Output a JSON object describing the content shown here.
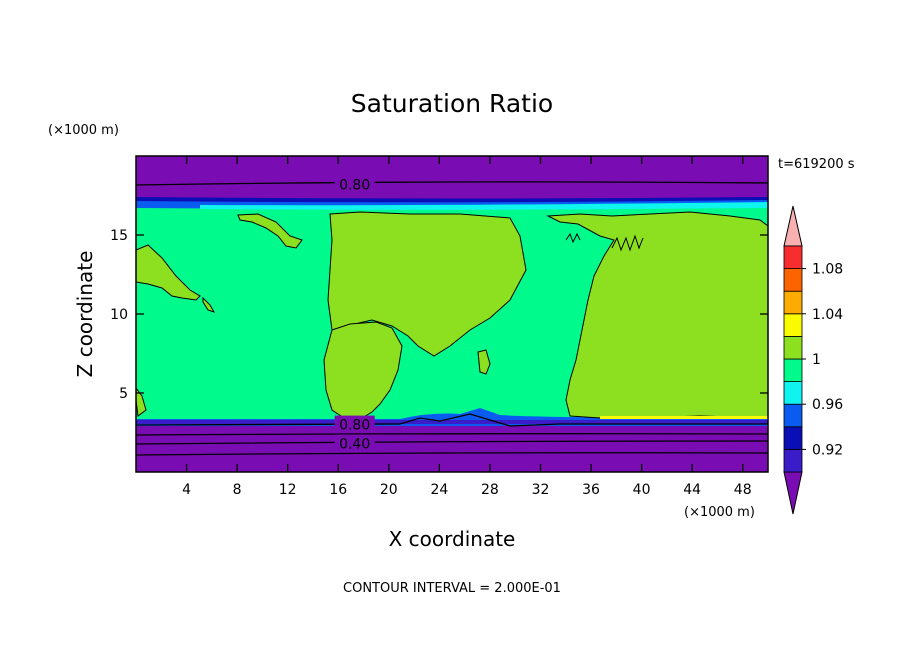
{
  "chart_data": {
    "type": "heatmap",
    "title": "Saturation Ratio",
    "xlabel": "X coordinate",
    "ylabel": "Z coordinate",
    "x_unit": "(×1000 m)",
    "y_unit": "(×1000 m)",
    "time_label": "t=619200 s",
    "footer": "CONTOUR INTERVAL = 2.000E-01",
    "xlim": [
      0,
      50
    ],
    "ylim": [
      0,
      20
    ],
    "x_ticks": [
      4,
      8,
      12,
      16,
      20,
      24,
      28,
      32,
      36,
      40,
      44,
      48
    ],
    "y_ticks": [
      5,
      10,
      15
    ],
    "contour_labels": [
      {
        "text": "0.80",
        "x": 17.3,
        "y": 18.2
      },
      {
        "text": "0.80",
        "x": 17.3,
        "y": 3.0
      },
      {
        "text": "0.40",
        "x": 17.3,
        "y": 1.8
      }
    ],
    "colorbar": {
      "levels": [
        "0.92",
        "0.96",
        "1",
        "1.04",
        "1.08"
      ],
      "colors": [
        "#7a0cb4",
        "#3a1cc8",
        "#0a0eb4",
        "#0a5cf0",
        "#10f4f0",
        "#00fa8c",
        "#8ce020",
        "#fafa00",
        "#fcac00",
        "#fc6400",
        "#f82e2e",
        "#f8b0b0"
      ]
    },
    "regions": {
      "background": "#00fa8c",
      "dry_layer": "#7a0cb4",
      "supersaturated": "#8ce020"
    }
  }
}
